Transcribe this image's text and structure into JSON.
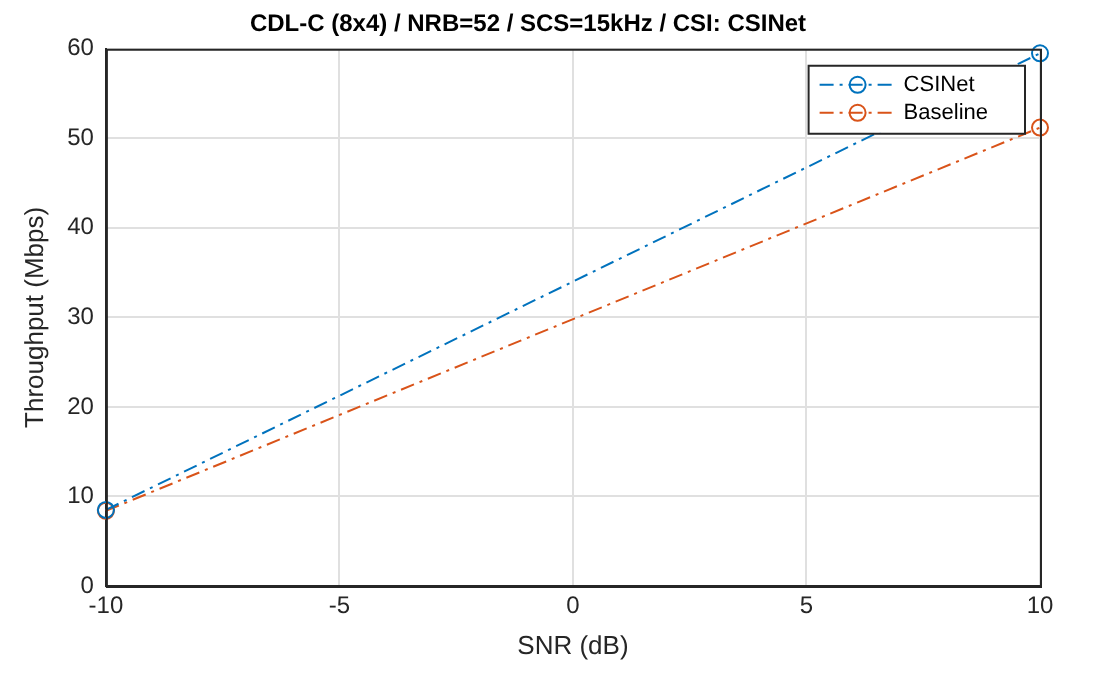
{
  "chart_data": {
    "type": "line",
    "title": "CDL-C (8x4) / NRB=52 / SCS=15kHz / CSI: CSINet",
    "xlabel": "SNR (dB)",
    "ylabel": "Throughput (Mbps)",
    "x": [
      -10,
      10
    ],
    "series": [
      {
        "name": "CSINet",
        "color": "#0072bd",
        "values": [
          8.5,
          59.5
        ]
      },
      {
        "name": "Baseline",
        "color": "#d95319",
        "values": [
          8.4,
          51.2
        ]
      }
    ],
    "xlim": [
      -10,
      10
    ],
    "xticks": [
      -10,
      -5,
      0,
      5,
      10
    ],
    "ylim": [
      0,
      60
    ],
    "yticks": [
      0,
      10,
      20,
      30,
      40,
      50,
      60
    ],
    "grid": true,
    "legend": "top right",
    "marker": "circle",
    "line_style": "dashed"
  }
}
